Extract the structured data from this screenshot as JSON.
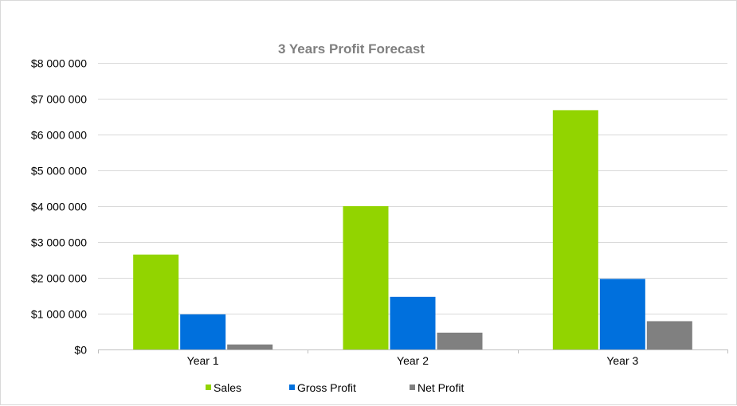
{
  "chart_data": {
    "type": "bar",
    "title": "3 Years Profit Forecast",
    "xlabel": "",
    "ylabel": "",
    "categories": [
      "Year 1",
      "Year 2",
      "Year 3"
    ],
    "series": [
      {
        "name": "Sales",
        "color": "#92d400",
        "values": [
          2650000,
          4000000,
          6680000
        ]
      },
      {
        "name": "Gross Profit",
        "color": "#0070dd",
        "values": [
          980000,
          1470000,
          1970000
        ]
      },
      {
        "name": "Net Profit",
        "color": "#808080",
        "values": [
          140000,
          470000,
          790000
        ]
      }
    ],
    "ylim": [
      0,
      8000000
    ],
    "y_ticks": [
      0,
      1000000,
      2000000,
      3000000,
      4000000,
      5000000,
      6000000,
      7000000,
      8000000
    ],
    "y_tick_labels": [
      "$0",
      "$1 000 000",
      "$2 000 000",
      "$3 000 000",
      "$4 000 000",
      "$5 000 000",
      "$6 000 000",
      "$7 000 000",
      "$8 000 000"
    ],
    "grid": true,
    "legend_position": "bottom"
  }
}
